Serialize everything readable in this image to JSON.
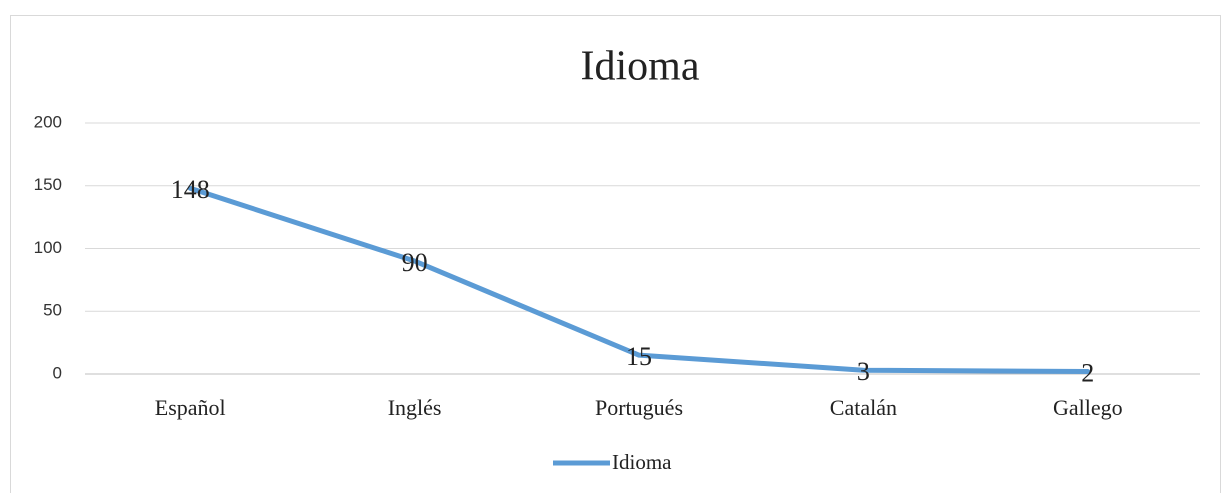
{
  "chart_data": {
    "type": "line",
    "title": "Idioma",
    "categories": [
      "Español",
      "Inglés",
      "Portugués",
      "Catalán",
      "Gallego"
    ],
    "series": [
      {
        "name": "Idioma",
        "color": "#5b9bd5",
        "values": [
          148,
          90,
          15,
          3,
          2
        ]
      }
    ],
    "ylim": [
      0,
      200
    ],
    "yticks": [
      0,
      50,
      100,
      150,
      200
    ],
    "grid": true,
    "legend": "bottom",
    "data_labels": true
  }
}
